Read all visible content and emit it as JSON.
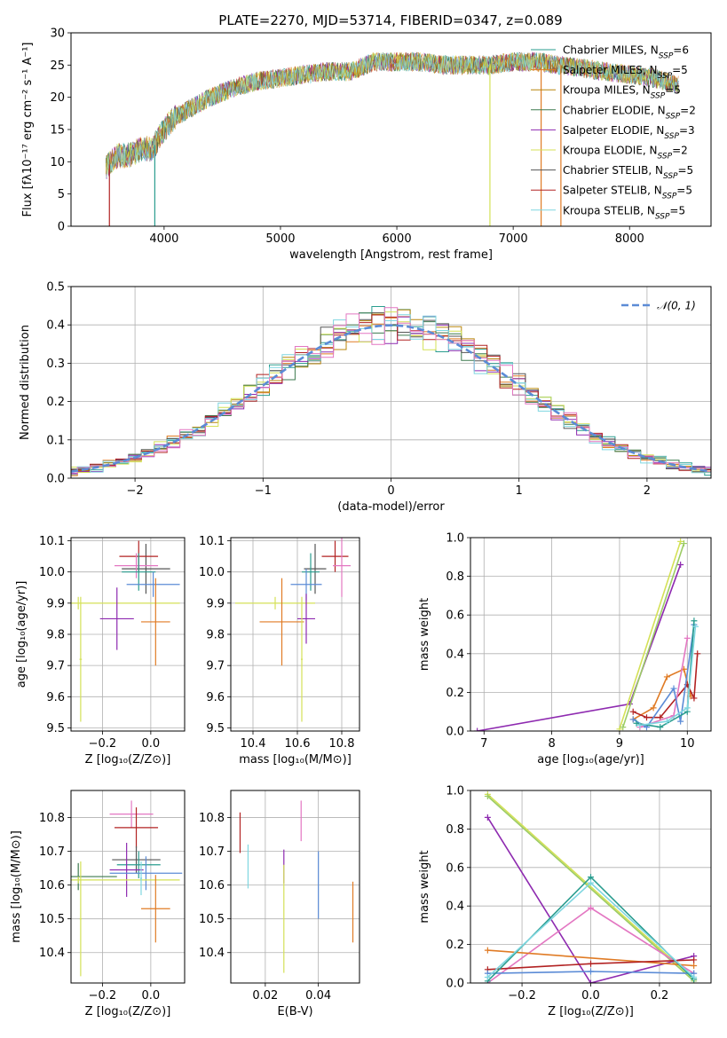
{
  "figure_title": "PLATE=2270, MJD=53714, FIBERID=0347, z=0.089",
  "colors": [
    "#2a9d8f",
    "#e07b25",
    "#b8860b",
    "#3d7a4f",
    "#8e2ab0",
    "#d4e157",
    "#555555",
    "#b22222",
    "#7fd6e0",
    "#e377c2",
    "#5b8bd6",
    "#9ccc65"
  ],
  "chart_data": [
    {
      "id": "spectrum",
      "type": "line",
      "title": "PLATE=2270, MJD=53714, FIBERID=0347, z=0.089",
      "xlabel": "wavelength [Angstrom, rest frame]",
      "ylabel": "Flux [fλ10⁻¹⁷ erg cm⁻² s⁻¹ A⁻¹]",
      "xlim": [
        3200,
        8700
      ],
      "ylim": [
        0,
        30
      ],
      "xticks": [
        4000,
        5000,
        6000,
        7000,
        8000
      ],
      "yticks": [
        0,
        5,
        10,
        15,
        20,
        25,
        30
      ],
      "legend_position": "upper-right",
      "legend": [
        "Chabrier MILES, N_SSP=6",
        "Salpeter MILES, N_SSP=5",
        "Kroupa MILES, N_SSP=5",
        "Chabrier ELODIE, N_SSP=2",
        "Salpeter ELODIE, N_SSP=3",
        "Kroupa ELODIE, N_SSP=2",
        "Chabrier STELIB, N_SSP=5",
        "Salpeter STELIB, N_SSP=5",
        "Kroupa STELIB, N_SSP=5"
      ],
      "legend_colors": [
        "#2a9d8f",
        "#e07b25",
        "#b8860b",
        "#3d7a4f",
        "#8e2ab0",
        "#d4e157",
        "#555555",
        "#b22222",
        "#7fd6e0"
      ],
      "continuum": [
        [
          3500,
          9
        ],
        [
          3600,
          11
        ],
        [
          3700,
          11
        ],
        [
          3800,
          12
        ],
        [
          3900,
          12
        ],
        [
          4000,
          15
        ],
        [
          4100,
          17
        ],
        [
          4200,
          18
        ],
        [
          4400,
          20
        ],
        [
          4600,
          21.5
        ],
        [
          4800,
          22.5
        ],
        [
          5000,
          23
        ],
        [
          5200,
          23.5
        ],
        [
          5400,
          24
        ],
        [
          5600,
          24
        ],
        [
          5800,
          25.5
        ],
        [
          6000,
          25.5
        ],
        [
          6200,
          25.5
        ],
        [
          6400,
          25
        ],
        [
          6600,
          25
        ],
        [
          6800,
          25
        ],
        [
          7000,
          25.5
        ],
        [
          7200,
          25.5
        ],
        [
          7400,
          25
        ],
        [
          7600,
          24.5
        ],
        [
          7800,
          24
        ],
        [
          8000,
          23.5
        ],
        [
          8200,
          23
        ],
        [
          8400,
          22
        ]
      ],
      "dips": [
        [
          3530,
          0
        ],
        [
          3920,
          0
        ],
        [
          6800,
          0
        ],
        [
          7410,
          0
        ],
        [
          7240,
          0
        ]
      ]
    },
    {
      "id": "residuals",
      "type": "histogram",
      "xlabel": "(data-model)/error",
      "ylabel": "Normed distribution",
      "xlim": [
        -2.5,
        2.5
      ],
      "ylim": [
        0,
        0.5
      ],
      "xticks": [
        -2,
        -1,
        0,
        1,
        2
      ],
      "yticks": [
        0.0,
        0.1,
        0.2,
        0.3,
        0.4,
        0.5
      ],
      "bin_width": 0.1,
      "reference_curve": "N(0,1)",
      "legend_position": "upper-right",
      "legend": [
        "𝒩(0, 1)"
      ]
    },
    {
      "id": "age-vs-Z",
      "type": "scatter",
      "xlabel": "Z [log₁₀(Z/Z⊙)]",
      "ylabel": "age  [log₁₀(age/yr)]",
      "xlim": [
        -0.33,
        0.14
      ],
      "ylim": [
        9.49,
        10.11
      ],
      "xticks": [
        -0.2,
        0.0
      ],
      "yticks": [
        9.5,
        9.6,
        9.7,
        9.8,
        9.9,
        10.0,
        10.1
      ],
      "points": [
        {
          "x": -0.02,
          "y": 10.01,
          "xerr": 0.1,
          "yerr": 0.08,
          "c": "#555555"
        },
        {
          "x": -0.05,
          "y": 10.05,
          "xerr": 0.08,
          "yerr": 0.05,
          "c": "#b22222"
        },
        {
          "x": -0.06,
          "y": 10.02,
          "xerr": 0.09,
          "yerr": 0.04,
          "c": "#e377c2"
        },
        {
          "x": -0.05,
          "y": 10.0,
          "xerr": 0.07,
          "yerr": 0.06,
          "c": "#2a9d8f"
        },
        {
          "x": 0.01,
          "y": 9.96,
          "xerr": 0.11,
          "yerr": 0.04,
          "c": "#5b8bd6"
        },
        {
          "x": -0.3,
          "y": 9.9,
          "xerr": 0.42,
          "yerr": 0.02,
          "c": "#d4e157"
        },
        {
          "x": -0.14,
          "y": 9.85,
          "xerr": 0.07,
          "yerr": 0.1,
          "c": "#8e2ab0"
        },
        {
          "x": 0.02,
          "y": 9.84,
          "xerr": 0.06,
          "yerr": 0.14,
          "c": "#e07b25"
        },
        {
          "x": -0.29,
          "y": 9.72,
          "xerr": 0.005,
          "yerr": 0.2,
          "c": "#d4e157"
        }
      ]
    },
    {
      "id": "age-vs-mass",
      "type": "scatter",
      "xlabel": "mass [log₁₀(M/M⊙)]",
      "ylabel": "",
      "xlim": [
        10.3,
        10.88
      ],
      "ylim": [
        9.49,
        10.11
      ],
      "xticks": [
        10.4,
        10.6,
        10.8
      ],
      "yticks": [
        9.5,
        9.6,
        9.7,
        9.8,
        9.9,
        10.0,
        10.1
      ],
      "points": [
        {
          "x": 10.77,
          "y": 10.05,
          "xerr": 0.06,
          "yerr": 0.05,
          "c": "#b22222"
        },
        {
          "x": 10.8,
          "y": 10.02,
          "xerr": 0.04,
          "yerr": 0.1,
          "c": "#e377c2"
        },
        {
          "x": 10.68,
          "y": 10.01,
          "xerr": 0.05,
          "yerr": 0.08,
          "c": "#555555"
        },
        {
          "x": 10.66,
          "y": 10.0,
          "xerr": 0.04,
          "yerr": 0.06,
          "c": "#2a9d8f"
        },
        {
          "x": 10.64,
          "y": 9.96,
          "xerr": 0.07,
          "yerr": 0.05,
          "c": "#5b8bd6"
        },
        {
          "x": 10.5,
          "y": 9.9,
          "xerr": 0.18,
          "yerr": 0.02,
          "c": "#d4e157"
        },
        {
          "x": 10.64,
          "y": 9.85,
          "xerr": 0.04,
          "yerr": 0.08,
          "c": "#8e2ab0"
        },
        {
          "x": 10.53,
          "y": 9.84,
          "xerr": 0.1,
          "yerr": 0.14,
          "c": "#e07b25"
        },
        {
          "x": 10.62,
          "y": 9.72,
          "xerr": 0.004,
          "yerr": 0.2,
          "c": "#d4e157"
        }
      ]
    },
    {
      "id": "weight-vs-age",
      "type": "line",
      "xlabel": "age  [log₁₀(age/yr)]",
      "ylabel": "mass weight",
      "xlim": [
        6.8,
        10.35
      ],
      "ylim": [
        0,
        1.0
      ],
      "xticks": [
        7,
        8,
        9,
        10
      ],
      "yticks": [
        0.0,
        0.2,
        0.4,
        0.6,
        0.8,
        1.0
      ],
      "series": [
        {
          "c": "#8e2ab0",
          "points": [
            [
              6.9,
              0
            ],
            [
              9.15,
              0.14
            ],
            [
              9.9,
              0.86
            ]
          ]
        },
        {
          "c": "#d4e157",
          "points": [
            [
              9.0,
              0.01
            ],
            [
              9.9,
              0.98
            ]
          ]
        },
        {
          "c": "#9ccc65",
          "points": [
            [
              9.05,
              0.02
            ],
            [
              9.95,
              0.97
            ]
          ]
        },
        {
          "c": "#e07b25",
          "points": [
            [
              9.2,
              0.06
            ],
            [
              9.5,
              0.12
            ],
            [
              9.7,
              0.28
            ],
            [
              9.95,
              0.32
            ],
            [
              10.05,
              0.18
            ]
          ]
        },
        {
          "c": "#b22222",
          "points": [
            [
              9.2,
              0.1
            ],
            [
              9.4,
              0.07
            ],
            [
              9.6,
              0.07
            ],
            [
              10.0,
              0.24
            ],
            [
              10.1,
              0.17
            ],
            [
              10.15,
              0.4
            ]
          ]
        },
        {
          "c": "#e377c2",
          "points": [
            [
              9.3,
              0.02
            ],
            [
              9.8,
              0.08
            ],
            [
              10.0,
              0.48
            ]
          ]
        },
        {
          "c": "#5b8bd6",
          "points": [
            [
              9.2,
              0.06
            ],
            [
              9.4,
              0.02
            ],
            [
              9.8,
              0.22
            ],
            [
              9.9,
              0.05
            ],
            [
              10.1,
              0.55
            ]
          ]
        },
        {
          "c": "#2a9d8f",
          "points": [
            [
              9.25,
              0.04
            ],
            [
              9.6,
              0.02
            ],
            [
              10.0,
              0.1
            ],
            [
              10.1,
              0.57
            ]
          ]
        },
        {
          "c": "#7fd6e0",
          "points": [
            [
              9.3,
              0.03
            ],
            [
              9.7,
              0.05
            ],
            [
              10.0,
              0.12
            ],
            [
              10.12,
              0.54
            ]
          ]
        }
      ]
    },
    {
      "id": "mass-vs-Z",
      "type": "scatter",
      "xlabel": "Z [log₁₀(Z/Z⊙)]",
      "ylabel": "mass [log₁₀(M/M⊙)]",
      "xlim": [
        -0.33,
        0.14
      ],
      "ylim": [
        10.31,
        10.88
      ],
      "xticks": [
        -0.2,
        0.0
      ],
      "yticks": [
        10.4,
        10.5,
        10.6,
        10.7,
        10.8
      ],
      "points": [
        {
          "x": -0.08,
          "y": 10.81,
          "xerr": 0.09,
          "yerr": 0.04,
          "c": "#e377c2"
        },
        {
          "x": -0.06,
          "y": 10.77,
          "xerr": 0.09,
          "yerr": 0.06,
          "c": "#b22222"
        },
        {
          "x": -0.06,
          "y": 10.675,
          "xerr": 0.1,
          "yerr": 0.04,
          "c": "#555555"
        },
        {
          "x": -0.05,
          "y": 10.66,
          "xerr": 0.09,
          "yerr": 0.04,
          "c": "#2a9d8f"
        },
        {
          "x": -0.1,
          "y": 10.645,
          "xerr": 0.07,
          "yerr": 0.08,
          "c": "#8e2ab0"
        },
        {
          "x": -0.02,
          "y": 10.635,
          "xerr": 0.15,
          "yerr": 0.05,
          "c": "#5b8bd6"
        },
        {
          "x": -0.3,
          "y": 10.625,
          "xerr": 0.16,
          "yerr": 0.04,
          "c": "#3d7a4f"
        },
        {
          "x": -0.3,
          "y": 10.615,
          "xerr": 0.42,
          "yerr": 0.01,
          "c": "#d4e157"
        },
        {
          "x": -0.29,
          "y": 10.5,
          "xerr": 0.004,
          "yerr": 0.17,
          "c": "#d4e157"
        },
        {
          "x": -0.04,
          "y": 10.62,
          "xerr": 0.004,
          "yerr": 0.05,
          "c": "#7fd6e0"
        },
        {
          "x": 0.02,
          "y": 10.53,
          "xerr": 0.06,
          "yerr": 0.1,
          "c": "#e07b25"
        }
      ]
    },
    {
      "id": "mass-vs-EBV",
      "type": "scatter",
      "xlabel": "E(B-V)",
      "ylabel": "",
      "xlim": [
        0.007,
        0.0555
      ],
      "ylim": [
        10.31,
        10.88
      ],
      "xticks": [
        0.02,
        0.04
      ],
      "yticks": [
        10.4,
        10.5,
        10.6,
        10.7,
        10.8
      ],
      "points": [
        {
          "x": 0.0105,
          "y": 10.755,
          "yerr": 0.06,
          "c": "#b22222"
        },
        {
          "x": 0.0135,
          "y": 10.655,
          "yerr": 0.065,
          "c": "#7fd6e0"
        },
        {
          "x": 0.027,
          "y": 10.655,
          "yerr": 0.05,
          "c": "#8e2ab0"
        },
        {
          "x": 0.027,
          "y": 10.5,
          "yerr": 0.16,
          "c": "#d4e157"
        },
        {
          "x": 0.0335,
          "y": 10.79,
          "yerr": 0.06,
          "c": "#e377c2"
        },
        {
          "x": 0.04,
          "y": 10.6,
          "yerr": 0.1,
          "c": "#5b8bd6"
        },
        {
          "x": 0.053,
          "y": 10.52,
          "yerr": 0.09,
          "c": "#e07b25"
        }
      ]
    },
    {
      "id": "weight-vs-Z",
      "type": "line",
      "xlabel": "Z [log₁₀(Z/Z⊙)]",
      "ylabel": "mass weight",
      "xlim": [
        -0.35,
        0.35
      ],
      "ylim": [
        0,
        1.0
      ],
      "xticks": [
        -0.2,
        0.0,
        0.2
      ],
      "yticks": [
        0.0,
        0.2,
        0.4,
        0.6,
        0.8,
        1.0
      ],
      "series": [
        {
          "c": "#d4e157",
          "points": [
            [
              -0.3,
              0.98
            ],
            [
              0.3,
              0.02
            ]
          ]
        },
        {
          "c": "#9ccc65",
          "points": [
            [
              -0.3,
              0.97
            ],
            [
              0.3,
              0.01
            ]
          ]
        },
        {
          "c": "#8e2ab0",
          "points": [
            [
              -0.3,
              0.86
            ],
            [
              0.0,
              0.0
            ],
            [
              0.3,
              0.14
            ]
          ]
        },
        {
          "c": "#e377c2",
          "points": [
            [
              -0.3,
              0.0
            ],
            [
              0.0,
              0.39
            ],
            [
              0.3,
              0.05
            ]
          ]
        },
        {
          "c": "#e07b25",
          "points": [
            [
              -0.3,
              0.17
            ],
            [
              0.3,
              0.09
            ]
          ]
        },
        {
          "c": "#b22222",
          "points": [
            [
              -0.3,
              0.07
            ],
            [
              0.0,
              0.1
            ],
            [
              0.3,
              0.12
            ]
          ]
        },
        {
          "c": "#5b8bd6",
          "points": [
            [
              -0.3,
              0.05
            ],
            [
              0.0,
              0.06
            ],
            [
              0.3,
              0.05
            ]
          ]
        },
        {
          "c": "#2a9d8f",
          "points": [
            [
              -0.3,
              0.01
            ],
            [
              0.0,
              0.55
            ],
            [
              0.3,
              0.02
            ]
          ]
        },
        {
          "c": "#7fd6e0",
          "points": [
            [
              -0.3,
              0.03
            ],
            [
              0.0,
              0.52
            ],
            [
              0.3,
              0.03
            ]
          ]
        }
      ]
    }
  ]
}
